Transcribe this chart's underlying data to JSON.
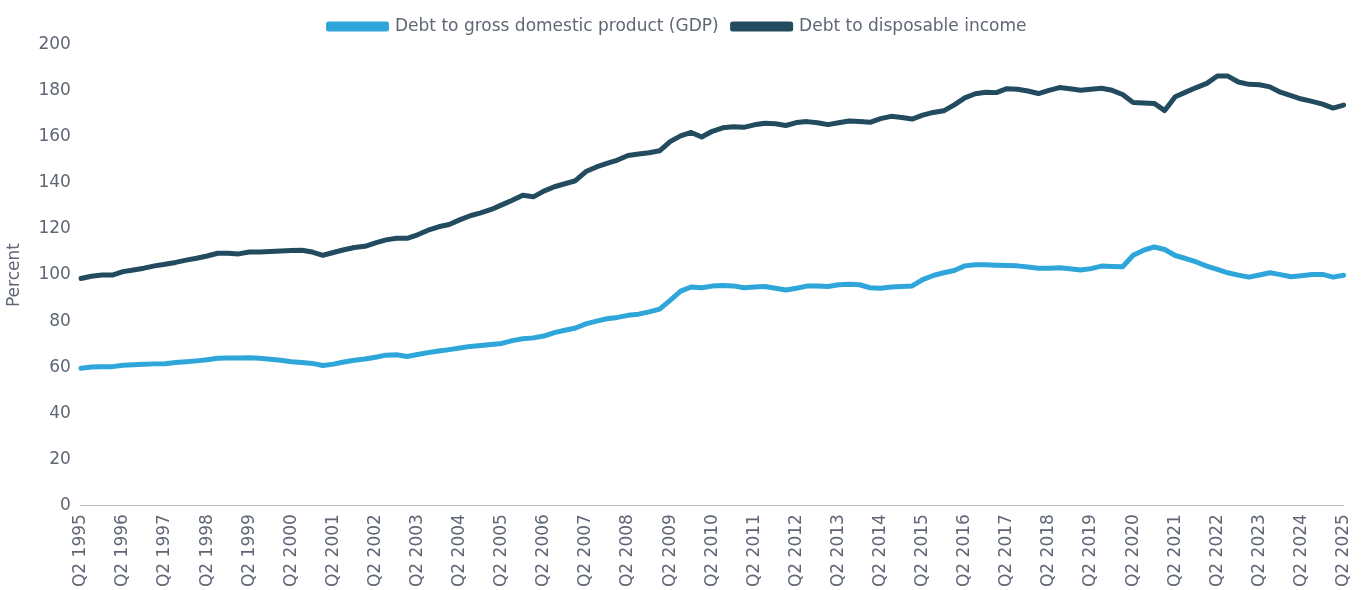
{
  "chart_data": {
    "type": "line",
    "ylabel": "Percent",
    "ylim": [
      0,
      200
    ],
    "yticks": [
      0,
      20,
      40,
      60,
      80,
      100,
      120,
      140,
      160,
      180,
      200
    ],
    "grid": false,
    "legend": "top",
    "marker": "none",
    "line_style": "solid",
    "categories": [
      "Q2 1995",
      null,
      null,
      null,
      "Q2 1996",
      null,
      null,
      null,
      "Q2 1997",
      null,
      null,
      null,
      "Q2 1998",
      null,
      null,
      null,
      "Q2 1999",
      null,
      null,
      null,
      "Q2 2000",
      null,
      null,
      null,
      "Q2 2001",
      null,
      null,
      null,
      "Q2 2002",
      null,
      null,
      null,
      "Q2 2003",
      null,
      null,
      null,
      "Q2 2004",
      null,
      null,
      null,
      "Q2 2005",
      null,
      null,
      null,
      "Q2 2006",
      null,
      null,
      null,
      "Q2 2007",
      null,
      null,
      null,
      "Q2 2008",
      null,
      null,
      null,
      "Q2 2009",
      null,
      null,
      null,
      "Q2 2010",
      null,
      null,
      null,
      "Q2 2011",
      null,
      null,
      null,
      "Q2 2012",
      null,
      null,
      null,
      "Q2 2013",
      null,
      null,
      null,
      "Q2 2014",
      null,
      null,
      null,
      "Q2 2015",
      null,
      null,
      null,
      "Q2 2016",
      null,
      null,
      null,
      "Q2 2017",
      null,
      null,
      null,
      "Q2 2018",
      null,
      null,
      null,
      "Q2 2019",
      null,
      null,
      null,
      "Q2 2020",
      null,
      null,
      null,
      "Q2 2021",
      null,
      null,
      null,
      "Q2 2022",
      null,
      null,
      null,
      "Q2 2023",
      null,
      null,
      null,
      "Q2 2024",
      null,
      null,
      null,
      "Q2 2025"
    ],
    "series": [
      {
        "name": "Debt to gross domestic product (GDP)",
        "color": "#2ea6d9",
        "values": [
          59.5,
          60,
          60.2,
          60.2,
          60.8,
          61,
          61.2,
          61.4,
          61.5,
          62,
          62.3,
          62.7,
          63.2,
          63.8,
          64,
          64,
          64.1,
          63.8,
          63.4,
          63,
          62.3,
          62,
          61.6,
          60.7,
          61.3,
          62.2,
          63,
          63.5,
          64.3,
          65.2,
          65.4,
          64.6,
          65.5,
          66.3,
          67,
          67.6,
          68.3,
          69,
          69.4,
          69.8,
          70.3,
          71.5,
          72.3,
          72.7,
          73.5,
          75,
          76,
          77,
          78.8,
          80,
          81,
          81.6,
          82.5,
          83,
          84,
          85.2,
          89,
          93,
          94.8,
          94.5,
          95.2,
          95.5,
          95.3,
          94.5,
          94.8,
          95,
          94.3,
          93.5,
          94.3,
          95.2,
          95.3,
          95,
          95.8,
          96,
          95.8,
          94.5,
          94.3,
          94.8,
          95,
          95.3,
          98,
          99.8,
          101,
          102,
          104,
          104.5,
          104.5,
          104.3,
          104.2,
          104,
          103.5,
          103,
          103,
          103.2,
          102.7,
          102.2,
          102.8,
          103.9,
          103.7,
          103.6,
          108.6,
          110.8,
          112.2,
          111.1,
          108.5,
          107.2,
          105.7,
          103.9,
          102.5,
          101,
          100,
          99.1,
          100,
          101,
          100.2,
          99.3,
          99.7,
          100.2,
          100.3,
          99.1,
          99.9
        ]
      },
      {
        "name": "Debt to disposable income",
        "color": "#224b5f",
        "values": [
          98.5,
          99.5,
          100,
          100,
          101.5,
          102.2,
          103,
          104,
          104.7,
          105.5,
          106.5,
          107.3,
          108.3,
          109.5,
          109.5,
          109.2,
          110,
          110,
          110.2,
          110.5,
          110.7,
          110.8,
          110,
          108.6,
          109.8,
          111,
          112,
          112.5,
          114,
          115.3,
          116,
          116,
          117.5,
          119.5,
          121,
          122,
          124,
          125.8,
          127,
          128.5,
          130.5,
          132.5,
          134.7,
          134,
          136.5,
          138.4,
          139.7,
          141,
          145,
          147,
          148.5,
          150,
          152,
          152.6,
          153.2,
          154,
          158,
          160.5,
          162,
          160,
          162.5,
          164,
          164.5,
          164.2,
          165.3,
          166,
          165.8,
          165,
          166.3,
          166.7,
          166.2,
          165.4,
          166.2,
          167,
          166.7,
          166.4,
          168,
          169,
          168.5,
          167.8,
          169.5,
          170.7,
          171.4,
          174,
          177,
          178.8,
          179.5,
          179.3,
          181,
          180.8,
          180,
          178.9,
          180.3,
          181.5,
          181,
          180.3,
          180.8,
          181.2,
          180.3,
          178.5,
          175,
          174.8,
          174.6,
          171.5,
          177.5,
          179.5,
          181.5,
          183.3,
          186.5,
          186.5,
          183.9,
          182.9,
          182.7,
          181.8,
          179.5,
          178,
          176.5,
          175.5,
          174.3,
          172.6,
          173.9
        ]
      }
    ]
  }
}
